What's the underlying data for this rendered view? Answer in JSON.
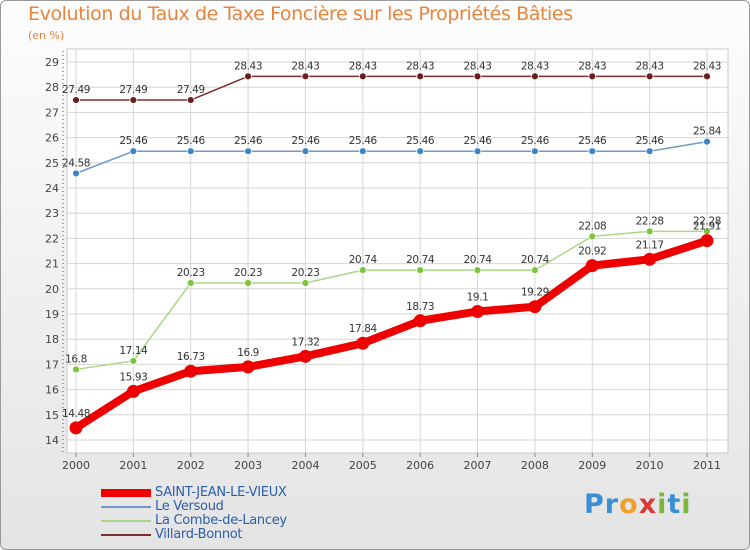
{
  "title": "Evolution du Taux de Taxe Foncière sur les Propriétés Bâties",
  "subtitle": "(en %)",
  "logo": {
    "text": "Proxiti",
    "letters": [
      "P",
      "r",
      "o",
      "x",
      "i",
      "t",
      "i"
    ]
  },
  "chart_data": {
    "type": "line",
    "title": "Evolution du Taux de Taxe Foncière sur les Propriétés Bâties",
    "ylabel": "(en %)",
    "xlabel": "",
    "categories": [
      "2000",
      "2001",
      "2002",
      "2003",
      "2004",
      "2005",
      "2006",
      "2007",
      "2008",
      "2009",
      "2010",
      "2011"
    ],
    "yticks": [
      "14",
      "15",
      "16",
      "17",
      "18",
      "19",
      "20",
      "21",
      "22",
      "23",
      "24",
      "25",
      "26",
      "27",
      "28",
      "29"
    ],
    "ylim": [
      14,
      29
    ],
    "grid": true,
    "series": [
      {
        "name": "SAINT-JEAN-LE-VIEUX",
        "color": "#ee0000",
        "emphasis": true,
        "values": [
          14.48,
          15.93,
          16.73,
          16.9,
          17.32,
          17.84,
          18.73,
          19.1,
          19.29,
          20.92,
          21.17,
          21.91
        ],
        "labels": [
          "14.48",
          "15.93",
          "16.73",
          "16.9",
          "17.32",
          "17.84",
          "18.73",
          "19.1",
          "19.29",
          "20.92",
          "21.17",
          "21.91"
        ]
      },
      {
        "name": "Le Versoud",
        "color": "#6f9ac8",
        "point_color": "#3a86c8",
        "values": [
          24.58,
          25.46,
          25.46,
          25.46,
          25.46,
          25.46,
          25.46,
          25.46,
          25.46,
          25.46,
          25.46,
          25.84
        ],
        "labels": [
          "24.58",
          "25.46",
          "25.46",
          "25.46",
          "25.46",
          "25.46",
          "25.46",
          "25.46",
          "25.46",
          "25.46",
          "25.46",
          "25.84"
        ]
      },
      {
        "name": "La Combe-de-Lancey",
        "color": "#a8d88a",
        "point_color": "#7cc43a",
        "values": [
          16.8,
          17.14,
          20.23,
          20.23,
          20.23,
          20.74,
          20.74,
          20.74,
          20.74,
          22.08,
          22.28,
          22.28
        ],
        "labels": [
          "16.8",
          "17.14",
          "20.23",
          "20.23",
          "20.23",
          "20.74",
          "20.74",
          "20.74",
          "20.74",
          "22.08",
          "22.28",
          "22.28"
        ]
      },
      {
        "name": "Villard-Bonnot",
        "color": "#7a2e2e",
        "point_color": "#6a1e1e",
        "values": [
          27.49,
          27.49,
          27.49,
          28.43,
          28.43,
          28.43,
          28.43,
          28.43,
          28.43,
          28.43,
          28.43,
          28.43
        ],
        "labels": [
          "27.49",
          "27.49",
          "27.49",
          "28.43",
          "28.43",
          "28.43",
          "28.43",
          "28.43",
          "28.43",
          "28.43",
          "28.43",
          "28.43"
        ]
      }
    ],
    "legend": "bottom-left"
  }
}
